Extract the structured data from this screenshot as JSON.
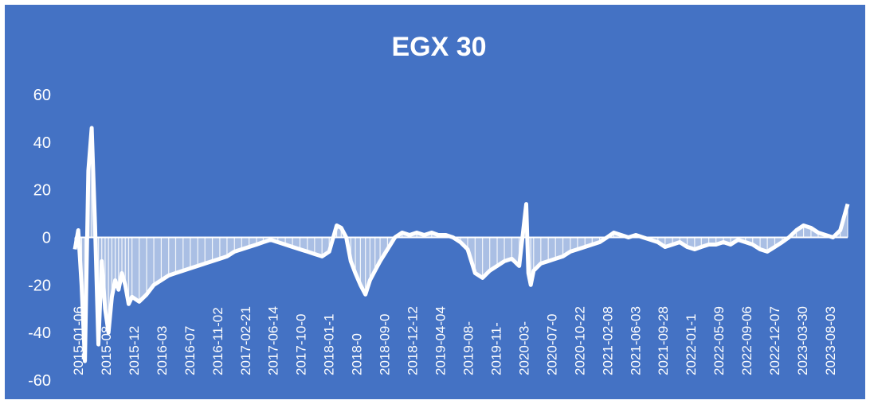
{
  "colors": {
    "background": "#4472C4",
    "foreground": "#FFFFFF"
  },
  "chart_data": {
    "type": "area",
    "title": "EGX 30",
    "xlabel": "",
    "ylabel": "",
    "ylim": [
      -60,
      60
    ],
    "yticks": [
      60,
      40,
      20,
      0,
      -20,
      -40,
      -60
    ],
    "grid": false,
    "legend": "none",
    "x_tick_labels": [
      "2015-01-06",
      "2015-08",
      "2015-12",
      "2016-03",
      "2016-07",
      "2016-11-02",
      "2017-02-21",
      "2017-06-14",
      "2017-10-0",
      "2018-01-1",
      "2018-0",
      "2018-09-0",
      "2018-12-12",
      "2019-04-04",
      "2019-08-",
      "2019-11-",
      "2020-03-",
      "2020-07-0",
      "2020-10-22",
      "2021-02-08",
      "2021-06-03",
      "2021-09-28",
      "2022-01-1",
      "2022-05-09",
      "2022-09-06",
      "2022-12-07",
      "2023-03-30",
      "2023-08-03"
    ],
    "x": [
      "2015-01-06",
      "2015-01-20",
      "2015-02-03",
      "2015-02-17",
      "2015-03-03",
      "2015-03-17",
      "2015-03-31",
      "2015-04-14",
      "2015-04-28",
      "2015-05-12",
      "2015-05-26",
      "2015-06-09",
      "2015-06-23",
      "2015-07-07",
      "2015-07-21",
      "2015-08-04",
      "2015-08-18",
      "2015-09-01",
      "2015-10-01",
      "2015-11-01",
      "2015-12-01",
      "2016-01-01",
      "2016-02-01",
      "2016-03-01",
      "2016-04-01",
      "2016-05-01",
      "2016-06-01",
      "2016-07-01",
      "2016-08-01",
      "2016-09-01",
      "2016-10-01",
      "2016-11-01",
      "2016-12-01",
      "2017-01-01",
      "2017-02-01",
      "2017-03-01",
      "2017-04-01",
      "2017-05-01",
      "2017-06-01",
      "2017-07-01",
      "2017-08-01",
      "2017-09-01",
      "2017-10-01",
      "2017-11-01",
      "2017-12-01",
      "2018-01-01",
      "2018-01-20",
      "2018-02-10",
      "2018-03-01",
      "2018-03-20",
      "2018-04-10",
      "2018-05-01",
      "2018-05-20",
      "2018-06-10",
      "2018-07-01",
      "2018-08-01",
      "2018-09-01",
      "2018-10-01",
      "2018-11-01",
      "2018-12-01",
      "2019-01-01",
      "2019-02-01",
      "2019-03-01",
      "2019-04-01",
      "2019-05-01",
      "2019-06-01",
      "2019-07-01",
      "2019-08-01",
      "2019-09-01",
      "2019-10-01",
      "2019-11-01",
      "2019-12-01",
      "2020-01-01",
      "2020-02-01",
      "2020-03-01",
      "2020-03-10",
      "2020-03-20",
      "2020-04-01",
      "2020-05-01",
      "2020-06-01",
      "2020-07-01",
      "2020-08-01",
      "2020-09-01",
      "2020-10-01",
      "2020-11-01",
      "2020-12-01",
      "2021-01-01",
      "2021-02-01",
      "2021-03-01",
      "2021-04-01",
      "2021-05-01",
      "2021-06-01",
      "2021-07-01",
      "2021-08-01",
      "2021-09-01",
      "2021-10-01",
      "2021-11-01",
      "2021-12-01",
      "2022-01-01",
      "2022-02-01",
      "2022-03-01",
      "2022-04-01",
      "2022-05-01",
      "2022-06-01",
      "2022-07-01",
      "2022-08-01",
      "2022-09-01",
      "2022-10-01",
      "2022-11-01",
      "2022-12-01",
      "2023-01-01",
      "2023-02-01",
      "2023-03-01",
      "2023-04-01",
      "2023-05-01",
      "2023-06-01",
      "2023-07-01",
      "2023-08-01",
      "2023-09-01",
      "2023-10-01",
      "2023-11-01"
    ],
    "values": [
      -5,
      3,
      -20,
      -52,
      28,
      46,
      5,
      -45,
      -10,
      -30,
      -40,
      -25,
      -18,
      -22,
      -15,
      -20,
      -28,
      -25,
      -27,
      -24,
      -20,
      -18,
      -16,
      -15,
      -14,
      -13,
      -12,
      -11,
      -10,
      -9,
      -8,
      -6,
      -5,
      -4,
      -3,
      -2,
      -1,
      -2,
      -3,
      -4,
      -5,
      -6,
      -7,
      -8,
      -6,
      5,
      4,
      0,
      -10,
      -15,
      -20,
      -24,
      -18,
      -14,
      -10,
      -5,
      0,
      2,
      1,
      2,
      1,
      2,
      1,
      1,
      0,
      -2,
      -5,
      -15,
      -17,
      -14,
      -12,
      -10,
      -9,
      -12,
      14,
      -15,
      -20,
      -14,
      -11,
      -10,
      -9,
      -8,
      -6,
      -5,
      -4,
      -3,
      -2,
      0,
      2,
      1,
      0,
      1,
      0,
      -1,
      -2,
      -4,
      -3,
      -2,
      -4,
      -5,
      -4,
      -3,
      -3,
      -2,
      -3,
      -1,
      -2,
      -3,
      -5,
      -6,
      -4,
      -2,
      0,
      3,
      5,
      4,
      2,
      1,
      0,
      3,
      14
    ]
  }
}
